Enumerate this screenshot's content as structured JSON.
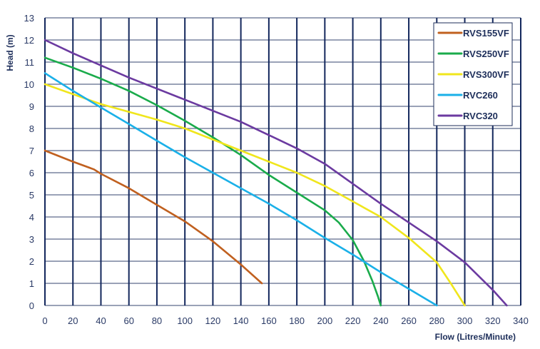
{
  "chart_data": {
    "type": "line",
    "title": "",
    "xlabel": "Flow (Litres/Minute)",
    "ylabel": "Head (m)",
    "xlim": [
      0,
      340
    ],
    "ylim": [
      0,
      13
    ],
    "xticks": [
      0,
      20,
      40,
      60,
      80,
      100,
      120,
      140,
      160,
      180,
      200,
      220,
      240,
      260,
      280,
      300,
      320,
      340
    ],
    "yticks": [
      0,
      1,
      2,
      3,
      4,
      5,
      6,
      7,
      8,
      9,
      10,
      11,
      12,
      13
    ],
    "grid": true,
    "legend_position": "top-right",
    "series": [
      {
        "name": "RVS155VF",
        "color": "#c0601f",
        "x": [
          0,
          20,
          35,
          40,
          60,
          80,
          100,
          120,
          140,
          155
        ],
        "y": [
          7,
          6.5,
          6.15,
          5.95,
          5.3,
          4.55,
          3.8,
          2.9,
          1.85,
          1
        ]
      },
      {
        "name": "RVS250VF",
        "color": "#1aab4b",
        "x": [
          0,
          20,
          40,
          60,
          80,
          100,
          120,
          140,
          160,
          180,
          200,
          210,
          220,
          228,
          234,
          238,
          240
        ],
        "y": [
          11.2,
          10.75,
          10.25,
          9.7,
          9.05,
          8.35,
          7.6,
          6.8,
          5.9,
          5.1,
          4.3,
          3.75,
          2.95,
          2.0,
          1.1,
          0.4,
          0
        ]
      },
      {
        "name": "RVS300VF",
        "color": "#f0e61c",
        "x": [
          0,
          20,
          40,
          60,
          80,
          100,
          120,
          140,
          160,
          180,
          200,
          220,
          240,
          260,
          280,
          290,
          300
        ],
        "y": [
          10,
          9.55,
          9.1,
          8.75,
          8.4,
          8.0,
          7.5,
          7.0,
          6.5,
          6.0,
          5.4,
          4.7,
          4.0,
          3.05,
          1.95,
          1.0,
          0
        ]
      },
      {
        "name": "RVC260",
        "color": "#1ab0e8",
        "x": [
          0,
          20,
          40,
          60,
          80,
          100,
          120,
          140,
          160,
          180,
          200,
          220,
          240,
          260,
          280
        ],
        "y": [
          10.5,
          9.7,
          8.95,
          8.2,
          7.45,
          6.7,
          6.0,
          5.3,
          4.6,
          3.85,
          3.05,
          2.3,
          1.5,
          0.75,
          0
        ]
      },
      {
        "name": "RVC320",
        "color": "#6b3aa0",
        "x": [
          0,
          20,
          40,
          60,
          80,
          100,
          120,
          140,
          160,
          180,
          200,
          220,
          240,
          260,
          280,
          300,
          320,
          330
        ],
        "y": [
          12,
          11.4,
          10.85,
          10.3,
          9.8,
          9.3,
          8.8,
          8.3,
          7.7,
          7.1,
          6.4,
          5.5,
          4.6,
          3.75,
          2.9,
          1.95,
          0.7,
          0
        ]
      }
    ]
  }
}
